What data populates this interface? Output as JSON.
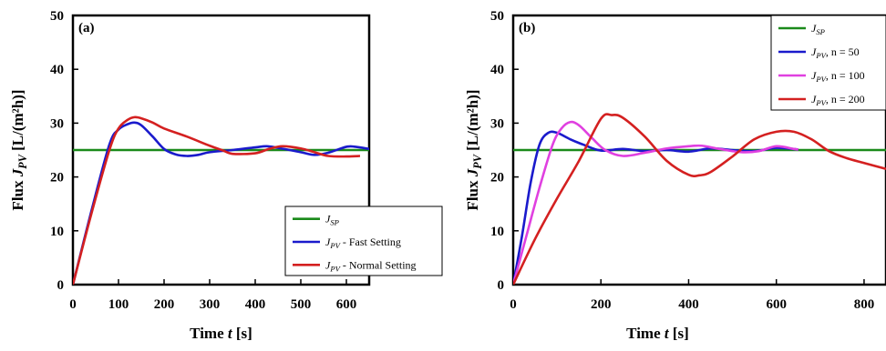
{
  "chart_data": [
    {
      "type": "line",
      "panel_label": "(a)",
      "xlabel": "Time t [s]",
      "ylabel": "Flux J_PV [L/(m²h)]",
      "xlim": [
        0,
        650
      ],
      "ylim": [
        0,
        50
      ],
      "xticks": [
        0,
        100,
        200,
        300,
        400,
        500,
        600
      ],
      "yticks": [
        0,
        10,
        20,
        30,
        40,
        50
      ],
      "grid": false,
      "legend_position": "bottom-right",
      "series": [
        {
          "name": "J_SP",
          "color": "#1a8a1a",
          "x": [
            0,
            650
          ],
          "y": [
            25,
            25
          ]
        },
        {
          "name": "J_PV - Fast Setting",
          "color": "#1a1acc",
          "x": [
            0,
            40,
            80,
            100,
            120,
            135,
            150,
            175,
            200,
            225,
            250,
            275,
            300,
            350,
            400,
            425,
            450,
            500,
            530,
            560,
            600,
            620,
            650
          ],
          "y": [
            0,
            13.5,
            26,
            28.8,
            29.8,
            30.1,
            29.6,
            27.5,
            25.2,
            24.2,
            23.9,
            24.1,
            24.6,
            25.0,
            25.5,
            25.7,
            25.4,
            24.6,
            24.1,
            24.5,
            25.6,
            25.6,
            25.2
          ]
        },
        {
          "name": "J_PV - Normal Setting",
          "color": "#d42020",
          "x": [
            0,
            40,
            80,
            100,
            120,
            135,
            150,
            175,
            200,
            250,
            300,
            330,
            350,
            400,
            430,
            460,
            500,
            530,
            560,
            600,
            630
          ],
          "y": [
            0,
            13,
            25,
            29,
            30.6,
            31.1,
            30.9,
            30.1,
            29.0,
            27.5,
            25.8,
            24.9,
            24.3,
            24.4,
            25.2,
            25.7,
            25.3,
            24.6,
            23.9,
            23.8,
            23.9
          ]
        }
      ],
      "legend": [
        "J_SP",
        "J_PV - Fast Setting",
        "J_PV - Normal Setting"
      ]
    },
    {
      "type": "line",
      "panel_label": "(b)",
      "xlabel": "Time t [s]",
      "ylabel": "Flux J_PV [L/(m²h)]",
      "xlim": [
        0,
        850
      ],
      "ylim": [
        0,
        50
      ],
      "xticks": [
        0,
        200,
        400,
        600,
        800
      ],
      "yticks": [
        0,
        10,
        20,
        30,
        40,
        50
      ],
      "grid": false,
      "legend_position": "top-right",
      "series": [
        {
          "name": "J_SP",
          "color": "#1a8a1a",
          "x": [
            0,
            850
          ],
          "y": [
            25,
            25
          ]
        },
        {
          "name": "J_PV, n = 50",
          "color": "#1a1acc",
          "x": [
            0,
            20,
            40,
            60,
            80,
            100,
            130,
            160,
            200,
            250,
            300,
            350,
            400,
            450,
            500,
            550,
            600,
            650
          ],
          "y": [
            0,
            9,
            19,
            26,
            28.2,
            28.2,
            27,
            26,
            24.9,
            25.2,
            24.8,
            25.0,
            24.7,
            25.3,
            25.0,
            24.8,
            25.4,
            25.1
          ]
        },
        {
          "name": "J_PV, n = 100",
          "color": "#e040e0",
          "x": [
            0,
            30,
            60,
            90,
            110,
            130,
            150,
            180,
            210,
            250,
            300,
            350,
            400,
            430,
            470,
            520,
            560,
            600,
            640,
            650
          ],
          "y": [
            0,
            9,
            18,
            26,
            29,
            30.2,
            29.6,
            27.2,
            25.0,
            23.9,
            24.5,
            25.3,
            25.7,
            25.8,
            25.2,
            24.6,
            24.8,
            25.7,
            25.2,
            25.1
          ]
        },
        {
          "name": "J_PV, n = 200",
          "color": "#d42020",
          "x": [
            0,
            50,
            100,
            150,
            200,
            225,
            250,
            300,
            350,
            400,
            425,
            450,
            500,
            550,
            600,
            640,
            680,
            720,
            760,
            800,
            850
          ],
          "y": [
            0,
            8.5,
            16,
            23,
            30.8,
            31.5,
            31.0,
            27.5,
            23.0,
            20.4,
            20.3,
            20.9,
            23.8,
            27.0,
            28.4,
            28.4,
            27.0,
            24.8,
            23.5,
            22.6,
            21.5
          ]
        }
      ],
      "legend": [
        "J_SP",
        "J_PV, n = 50",
        "J_PV, n = 100",
        "J_PV, n = 200"
      ]
    }
  ]
}
